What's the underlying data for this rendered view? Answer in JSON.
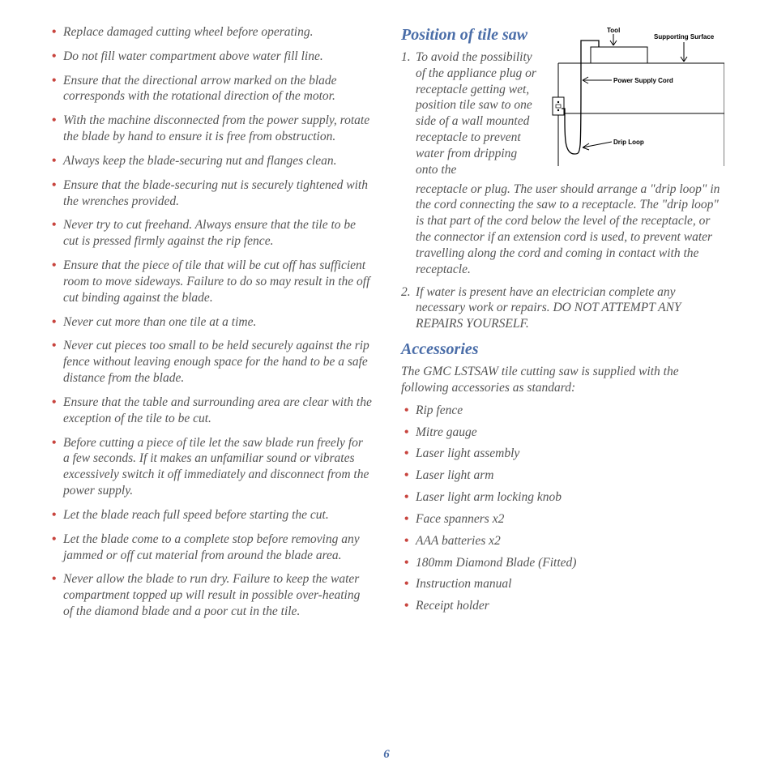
{
  "page_number": "6",
  "left_bullets": [
    "Replace damaged cutting wheel before operating.",
    "Do not fill water compartment above water fill line.",
    "Ensure that the directional arrow marked on the blade corresponds with the rotational direction of the motor.",
    "With the machine disconnected from the power supply, rotate the blade by hand to ensure it is free from obstruction.",
    "Always keep the blade-securing nut and flanges clean.",
    "Ensure that the blade-securing nut is securely tightened with the wrenches provided.",
    "Never try to cut freehand. Always ensure that the tile to be cut is pressed firmly against the rip fence.",
    "Ensure that the piece of tile that will be cut off has sufficient room to move sideways. Failure to do so may result in the off cut binding against the blade.",
    "Never cut more than one tile at a time.",
    "Never cut pieces too small to be held securely against the rip fence without leaving enough space for the hand to be a safe distance from the blade.",
    "Ensure that the table and surrounding area are clear with the exception of the tile to be cut.",
    "Before cutting a piece of tile let the saw blade run freely for a few seconds. If it makes an unfamiliar sound or vibrates excessively switch it off immediately and disconnect from the power supply.",
    "Let the blade reach full speed before starting the cut.",
    "Let the blade come to a complete stop before removing any jammed or off cut material from around the blade area.",
    "Never allow the blade to run dry. Failure to keep the water compartment topped up will result in possible over-heating of the diamond blade and a poor cut in the tile."
  ],
  "position_heading": "Position of tile saw",
  "position_item1_intro": "To avoid the possibility of the appliance plug or receptacle getting wet, position tile saw to one side of a wall mounted receptacle to prevent water from dripping onto the",
  "position_item1_rest": "receptacle or plug. The user should arrange a \"drip loop\" in the cord connecting the saw to a receptacle. The \"drip loop\" is that part of the cord below the level of the receptacle, or the connector if an extension cord is used, to prevent water travelling along the cord and coming in contact with the receptacle.",
  "position_item2": "If water is present have an electrician complete any necessary work or repairs. DO NOT ATTEMPT ANY REPAIRS YOURSELF.",
  "accessories_heading": "Accessories",
  "accessories_intro": "The GMC LSTSAW tile cutting saw is supplied with the following accessories as standard:",
  "accessories_list": [
    "Rip fence",
    "Mitre gauge",
    "Laser light assembly",
    "Laser light arm",
    "Laser light arm locking knob",
    "Face spanners x2",
    "AAA batteries x2",
    "180mm Diamond Blade (Fitted)",
    "Instruction manual",
    "Receipt holder"
  ],
  "diagram": {
    "labels": {
      "tool": "Tool",
      "surface": "Supporting Surface",
      "cord": "Power Supply Cord",
      "drip": "Drip Loop"
    },
    "colors": {
      "line": "#000000",
      "bg": "#ffffff"
    }
  },
  "colors": {
    "heading": "#4a6da8",
    "bullet": "#c8443e",
    "text": "#545454",
    "pagenum": "#4a6da8"
  }
}
